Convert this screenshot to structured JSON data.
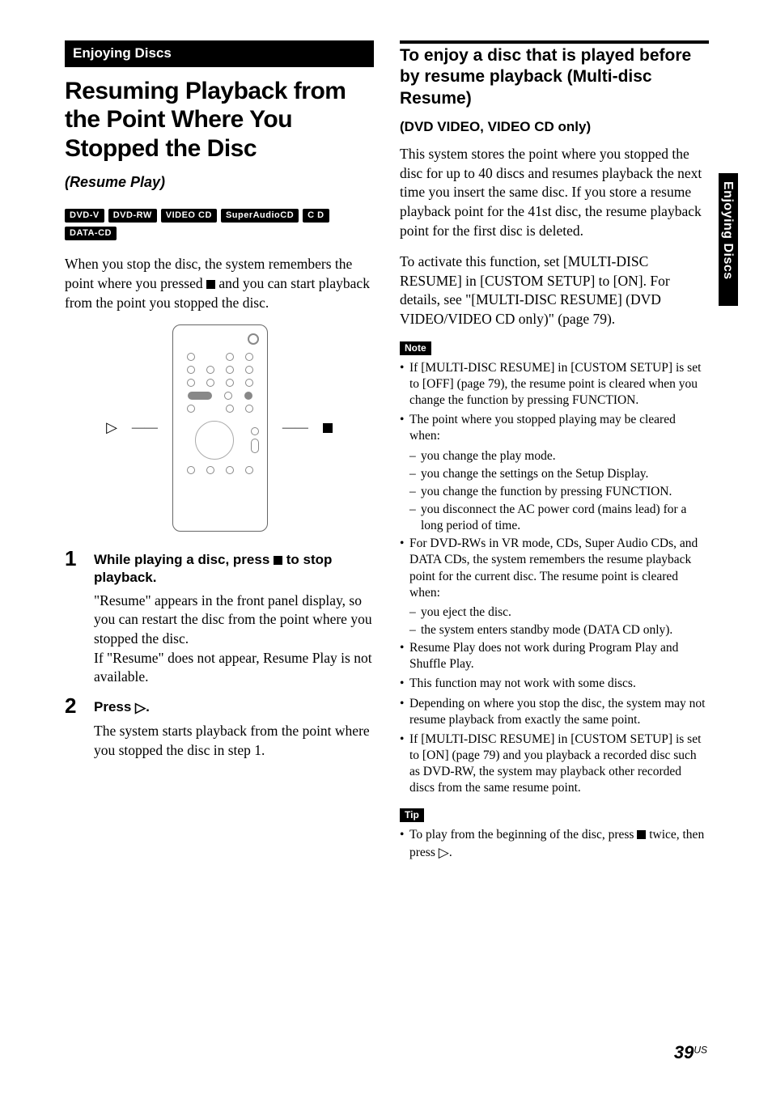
{
  "sideTab": "Enjoying Discs",
  "left": {
    "sectionHeader": "Enjoying Discs",
    "title": "Resuming Playback from the Point Where You Stopped the Disc",
    "subtitle": "(Resume Play)",
    "badges": [
      "DVD-V",
      "DVD-RW",
      "VIDEO CD",
      "SuperAudioCD",
      "C D",
      "DATA-CD"
    ],
    "intro_a": "When you stop the disc, the system remembers the point where you pressed ",
    "intro_b": " and you can start playback from the point you stopped the disc.",
    "steps": [
      {
        "num": "1",
        "title_a": "While playing a disc, press ",
        "title_b": " to stop playback.",
        "text": "\"Resume\" appears in the front panel display, so you can restart the disc from the point where you stopped the disc.\nIf \"Resume\" does not appear, Resume Play is not available."
      },
      {
        "num": "2",
        "title_a": "Press ",
        "title_b": ".",
        "text": "The system starts playback from the point where you stopped the disc in step 1."
      }
    ]
  },
  "right": {
    "h2": "To enjoy a disc that is played before by resume playback (Multi-disc Resume)",
    "h3": "(DVD VIDEO, VIDEO CD only)",
    "para1": "This system stores the point where you stopped the disc for up to 40 discs and resumes playback the next time you insert the same disc. If you store a resume playback point for the 41st disc, the resume playback point for the first disc is deleted.",
    "para2": "To activate this function, set [MULTI-DISC RESUME] in [CUSTOM SETUP] to [ON]. For details, see \"[MULTI-DISC RESUME] (DVD VIDEO/VIDEO CD only)\" (page 79).",
    "noteLabel": "Note",
    "notes": [
      {
        "text": "If [MULTI-DISC RESUME] in [CUSTOM SETUP] is set to [OFF] (page 79), the resume point is cleared when you change the function by pressing FUNCTION."
      },
      {
        "text": "The point where you stopped playing may be cleared when:",
        "subs": [
          "you change the play mode.",
          "you change the settings on the Setup Display.",
          "you change the function by pressing FUNCTION.",
          "you disconnect the AC power cord (mains lead) for a long period of time."
        ]
      },
      {
        "text": "For DVD-RWs in VR mode, CDs, Super Audio CDs, and DATA CDs, the system remembers the resume playback point for the current disc. The resume point is cleared when:",
        "subs": [
          "you eject the disc.",
          "the system enters standby mode (DATA CD only)."
        ]
      },
      {
        "text": "Resume Play does not work during Program Play and Shuffle Play."
      },
      {
        "text": "This function may not work with some discs."
      },
      {
        "text": "Depending on where you stop the disc, the system may not resume playback from exactly the same point."
      },
      {
        "text": "If [MULTI-DISC RESUME] in [CUSTOM SETUP] is set to [ON] (page 79) and you playback a recorded disc such as DVD-RW, the system may playback other recorded discs from the same resume point."
      }
    ],
    "tipLabel": "Tip",
    "tip_a": "To play from the beginning of the disc, press ",
    "tip_b": " twice, then press ",
    "tip_c": "."
  },
  "pageNum": "39",
  "pageRegion": "US"
}
